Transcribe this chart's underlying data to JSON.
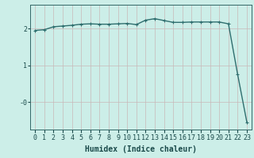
{
  "x": [
    0,
    1,
    2,
    3,
    4,
    5,
    6,
    7,
    8,
    9,
    10,
    11,
    12,
    13,
    14,
    15,
    16,
    17,
    18,
    19,
    20,
    21,
    22,
    23
  ],
  "y": [
    1.95,
    1.97,
    2.05,
    2.07,
    2.09,
    2.12,
    2.13,
    2.12,
    2.12,
    2.13,
    2.14,
    2.11,
    2.23,
    2.27,
    2.22,
    2.17,
    2.17,
    2.18,
    2.18,
    2.18,
    2.18,
    2.13,
    0.75,
    -0.55
  ],
  "xlabel": "Humidex (Indice chaleur)",
  "line_color": "#2e6e6e",
  "marker": "+",
  "marker_size": 3,
  "marker_linewidth": 0.8,
  "bg_color": "#cceee8",
  "grid_color_v": "#c8b8b8",
  "grid_color_h": "#c8b8b8",
  "axis_color": "#336666",
  "xlim": [
    -0.5,
    23.5
  ],
  "ylim": [
    -0.75,
    2.65
  ],
  "yticks": [
    2,
    1,
    0
  ],
  "ytick_labels": [
    "2",
    "1",
    "-0"
  ],
  "xtick_labels": [
    "0",
    "1",
    "2",
    "3",
    "4",
    "5",
    "6",
    "7",
    "8",
    "9",
    "10",
    "11",
    "12",
    "13",
    "14",
    "15",
    "16",
    "17",
    "18",
    "19",
    "20",
    "21",
    "22",
    "23"
  ],
  "figsize": [
    3.2,
    2.0
  ],
  "dpi": 100,
  "xlabel_fontsize": 7,
  "tick_fontsize": 6,
  "linewidth": 1.0
}
